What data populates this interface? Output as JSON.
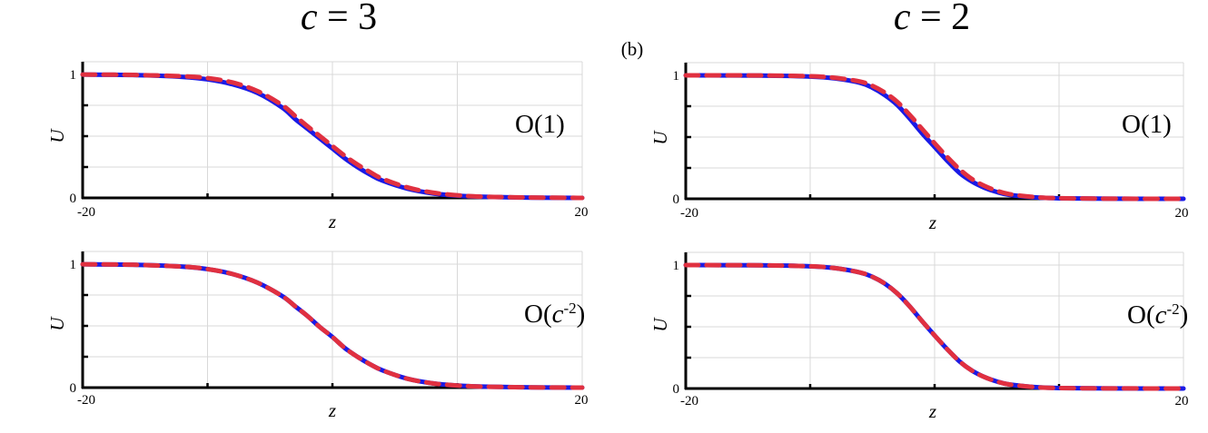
{
  "figure": {
    "panel_tag": "(b)",
    "columns": [
      {
        "title_var": "c",
        "title_eq": " = ",
        "title_val": "3"
      },
      {
        "title_var": "c",
        "title_eq": " = ",
        "title_val": "2"
      }
    ]
  },
  "chart_data": [
    {
      "type": "line",
      "column_title": "c = 3",
      "order_label": {
        "prefix": "O(",
        "var": "",
        "sup": "",
        "suffix": "1)"
      },
      "xlabel": "z",
      "ylabel": "U",
      "xlim": [
        -20,
        20
      ],
      "ylim": [
        0,
        1
      ],
      "x_tick_labels": [
        "-20",
        "20"
      ],
      "y_tick_labels": [
        "0",
        "1"
      ],
      "grid": true,
      "series": [
        {
          "style": "solid",
          "color": "#1a1ae6",
          "x": [
            -20,
            -16,
            -12,
            -10,
            -8,
            -6,
            -4,
            -3,
            -2,
            -1,
            0,
            1,
            2,
            3,
            4,
            6,
            8,
            10,
            12,
            16,
            20
          ],
          "y": [
            0.999,
            0.995,
            0.98,
            0.96,
            0.92,
            0.85,
            0.73,
            0.64,
            0.56,
            0.48,
            0.4,
            0.32,
            0.25,
            0.19,
            0.14,
            0.075,
            0.037,
            0.018,
            0.009,
            0.002,
            0.0
          ]
        },
        {
          "style": "dashed",
          "color": "#e03040",
          "x": [
            -20,
            -16,
            -12,
            -10,
            -8,
            -6,
            -4,
            -3,
            -2,
            -1,
            0,
            1,
            2,
            3,
            4,
            6,
            8,
            10,
            12,
            16,
            20
          ],
          "y": [
            0.999,
            0.996,
            0.985,
            0.97,
            0.935,
            0.865,
            0.75,
            0.665,
            0.58,
            0.5,
            0.42,
            0.34,
            0.27,
            0.21,
            0.155,
            0.085,
            0.043,
            0.021,
            0.01,
            0.003,
            0.0
          ]
        }
      ]
    },
    {
      "type": "line",
      "column_title": "c = 2",
      "order_label": {
        "prefix": "O(",
        "var": "",
        "sup": "",
        "suffix": "1)"
      },
      "xlabel": "z",
      "ylabel": "U",
      "xlim": [
        -20,
        20
      ],
      "ylim": [
        0,
        1
      ],
      "x_tick_labels": [
        "-20",
        "20"
      ],
      "y_tick_labels": [
        "0",
        "1"
      ],
      "grid": true,
      "series": [
        {
          "style": "solid",
          "color": "#1a1ae6",
          "x": [
            -20,
            -14,
            -10,
            -8,
            -6,
            -5,
            -4,
            -3,
            -2,
            -1,
            0,
            1,
            2,
            3,
            4,
            5,
            6,
            8,
            10,
            14,
            20
          ],
          "y": [
            1.0,
            0.998,
            0.99,
            0.975,
            0.94,
            0.9,
            0.84,
            0.76,
            0.65,
            0.53,
            0.42,
            0.31,
            0.21,
            0.14,
            0.09,
            0.055,
            0.032,
            0.012,
            0.004,
            0.001,
            0.0
          ]
        },
        {
          "style": "dashed",
          "color": "#e03040",
          "x": [
            -20,
            -14,
            -10,
            -8,
            -6,
            -5,
            -4,
            -3,
            -2,
            -1,
            0,
            1,
            2,
            3,
            4,
            5,
            6,
            8,
            10,
            14,
            20
          ],
          "y": [
            1.0,
            0.999,
            0.993,
            0.98,
            0.95,
            0.915,
            0.86,
            0.785,
            0.68,
            0.565,
            0.45,
            0.34,
            0.24,
            0.16,
            0.105,
            0.065,
            0.038,
            0.014,
            0.005,
            0.001,
            0.0
          ]
        }
      ]
    },
    {
      "type": "line",
      "column_title": "c = 3",
      "order_label": {
        "prefix": "O(",
        "var": "c",
        "sup": "-2",
        "suffix": ")"
      },
      "xlabel": "z",
      "ylabel": "U",
      "xlim": [
        -20,
        20
      ],
      "ylim": [
        0,
        1
      ],
      "x_tick_labels": [
        "-20",
        "20"
      ],
      "y_tick_labels": [
        "0",
        "1"
      ],
      "grid": true,
      "series": [
        {
          "style": "solid",
          "color": "#1a1ae6",
          "x": [
            -20,
            -16,
            -12,
            -10,
            -8,
            -6,
            -4,
            -3,
            -2,
            -1,
            0,
            1,
            2,
            3,
            4,
            6,
            8,
            10,
            12,
            16,
            20
          ],
          "y": [
            0.999,
            0.995,
            0.98,
            0.96,
            0.92,
            0.85,
            0.74,
            0.66,
            0.58,
            0.49,
            0.41,
            0.32,
            0.25,
            0.19,
            0.14,
            0.072,
            0.035,
            0.017,
            0.008,
            0.002,
            0.0
          ]
        },
        {
          "style": "dashed",
          "color": "#e03040",
          "x": [
            -20,
            -16,
            -12,
            -10,
            -8,
            -6,
            -4,
            -3,
            -2,
            -1,
            0,
            1,
            2,
            3,
            4,
            6,
            8,
            10,
            12,
            16,
            20
          ],
          "y": [
            0.999,
            0.995,
            0.98,
            0.96,
            0.92,
            0.85,
            0.74,
            0.66,
            0.58,
            0.49,
            0.41,
            0.32,
            0.25,
            0.19,
            0.14,
            0.072,
            0.035,
            0.017,
            0.008,
            0.002,
            0.0
          ]
        }
      ]
    },
    {
      "type": "line",
      "column_title": "c = 2",
      "order_label": {
        "prefix": "O(",
        "var": "c",
        "sup": "-2",
        "suffix": ")"
      },
      "xlabel": "z",
      "ylabel": "U",
      "xlim": [
        -20,
        20
      ],
      "ylim": [
        0,
        1
      ],
      "x_tick_labels": [
        "-20",
        "20"
      ],
      "y_tick_labels": [
        "0",
        "1"
      ],
      "grid": true,
      "series": [
        {
          "style": "solid",
          "color": "#1a1ae6",
          "x": [
            -20,
            -14,
            -10,
            -8,
            -6,
            -5,
            -4,
            -3,
            -2,
            -1,
            0,
            1,
            2,
            3,
            4,
            5,
            6,
            8,
            10,
            14,
            20
          ],
          "y": [
            1.0,
            0.998,
            0.99,
            0.975,
            0.94,
            0.905,
            0.85,
            0.77,
            0.665,
            0.545,
            0.43,
            0.32,
            0.22,
            0.145,
            0.093,
            0.057,
            0.033,
            0.012,
            0.004,
            0.001,
            0.0
          ]
        },
        {
          "style": "dashed",
          "color": "#e03040",
          "x": [
            -20,
            -14,
            -10,
            -8,
            -6,
            -5,
            -4,
            -3,
            -2,
            -1,
            0,
            1,
            2,
            3,
            4,
            5,
            6,
            8,
            10,
            14,
            20
          ],
          "y": [
            1.0,
            0.998,
            0.99,
            0.975,
            0.94,
            0.905,
            0.85,
            0.77,
            0.665,
            0.545,
            0.43,
            0.32,
            0.22,
            0.145,
            0.093,
            0.057,
            0.033,
            0.012,
            0.004,
            0.001,
            0.0
          ]
        }
      ]
    }
  ]
}
